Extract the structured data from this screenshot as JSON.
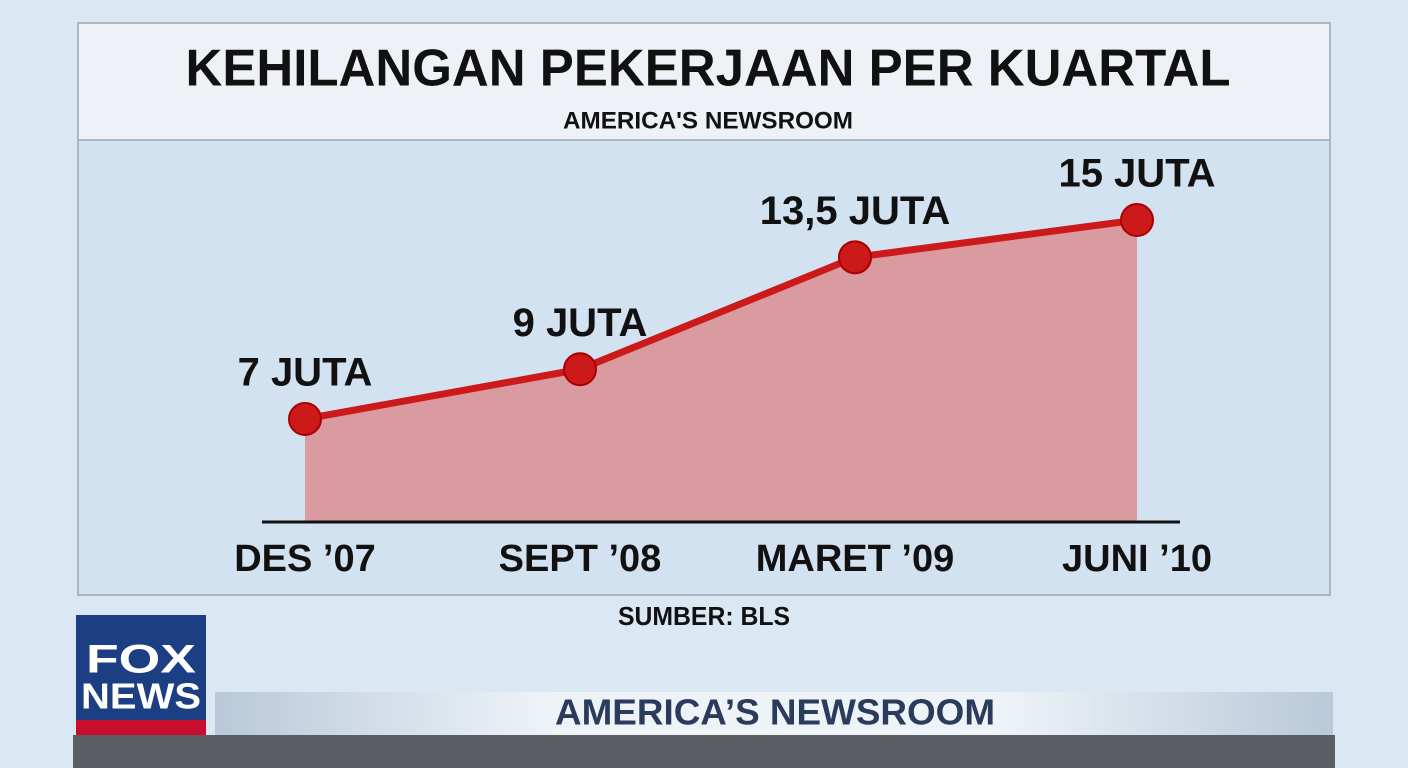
{
  "chart_data": {
    "type": "area-line",
    "title": "KEHILANGAN PEKERJAAN PER KUARTAL",
    "subtitle": "AMERICA'S NEWSROOM",
    "categories": [
      "DES ’07",
      "SEPT ’08",
      "MARET ’09",
      "JUNI ’10"
    ],
    "values": [
      7,
      9,
      13.5,
      15
    ],
    "value_labels": [
      "7 JUTA",
      "9 JUTA",
      "13,5 JUTA",
      "15 JUTA"
    ],
    "color": "#cc1a1a",
    "fill_color": "#d99aa0",
    "source": "SUMBER: BLS"
  },
  "logo": {
    "line1": "FOX",
    "line2": "NEWS"
  },
  "banner": "AMERICA’S NEWSROOM"
}
